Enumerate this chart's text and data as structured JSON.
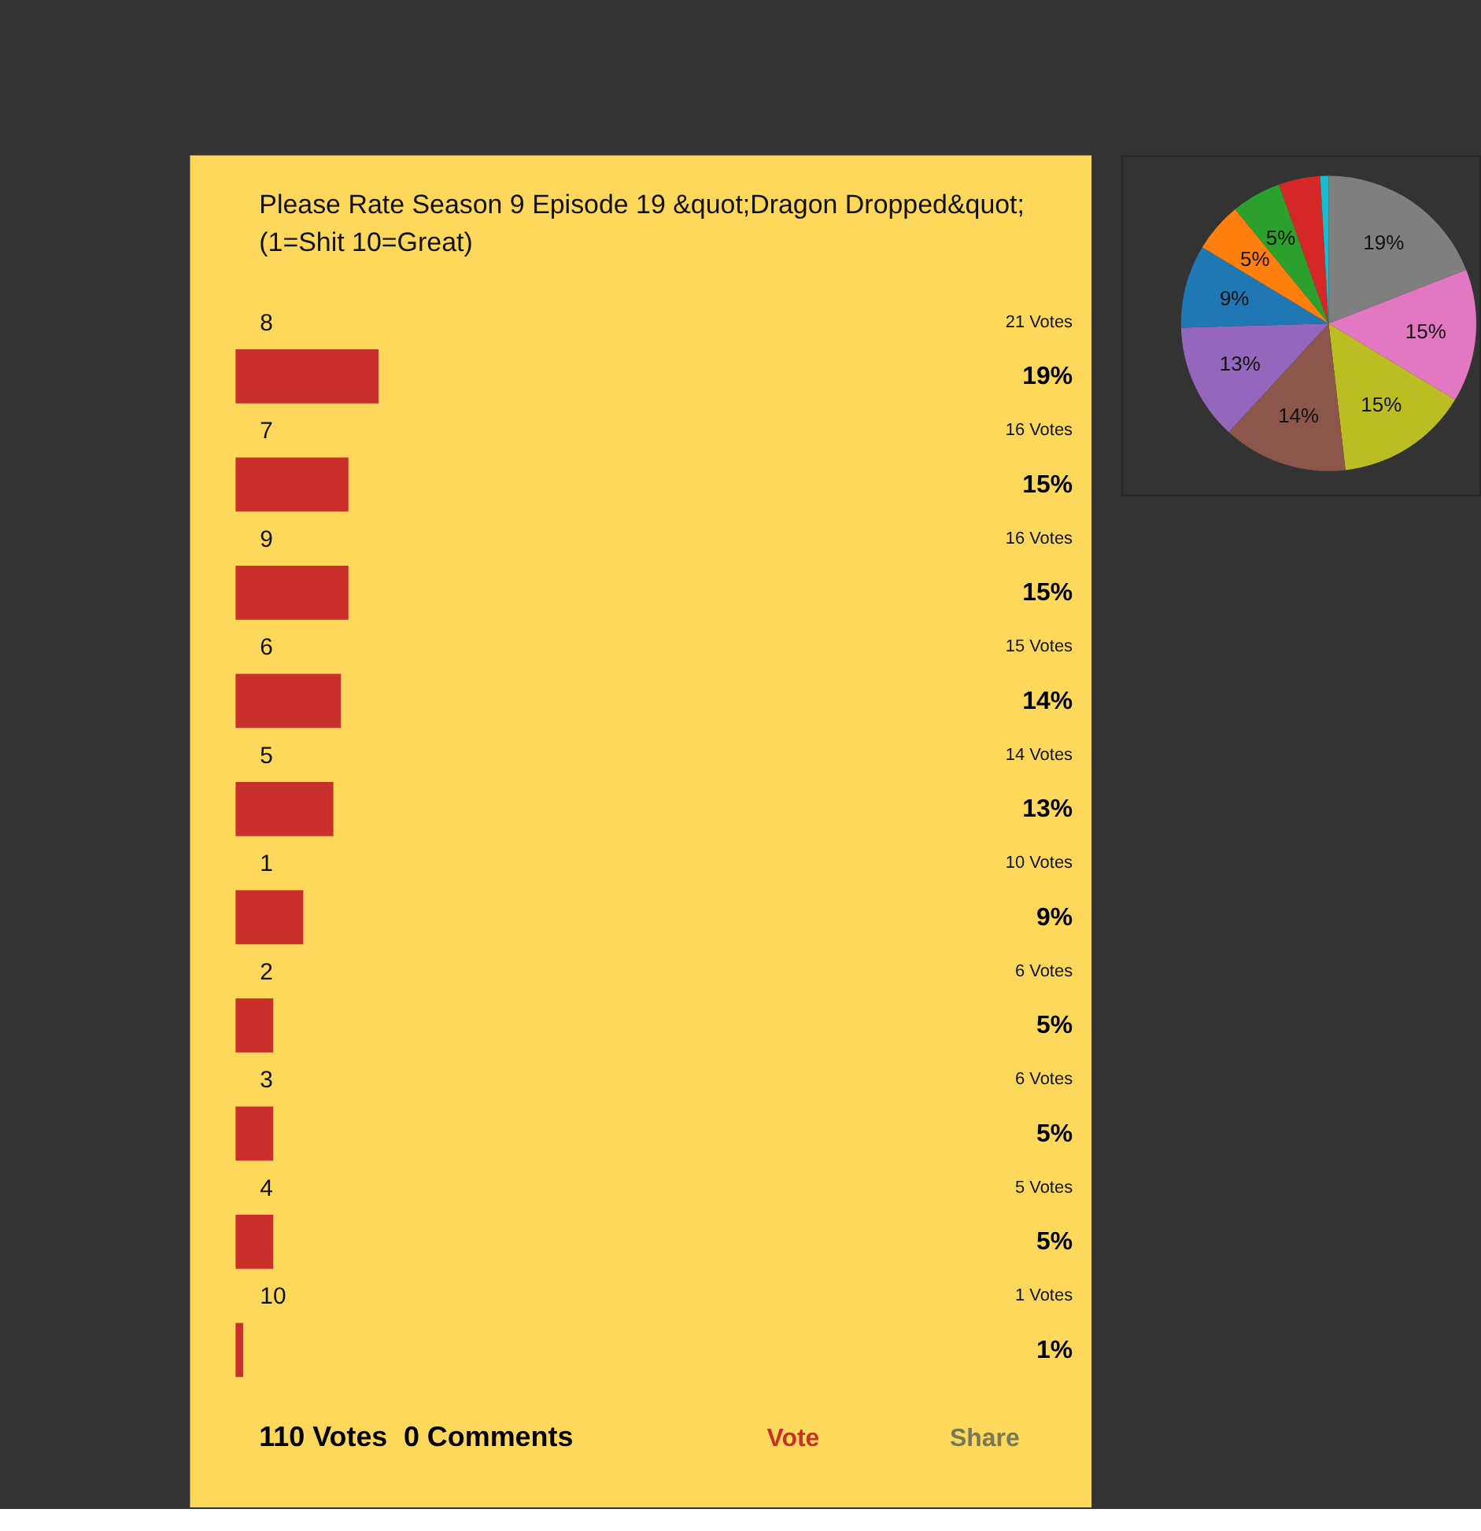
{
  "chart_data": [
    {
      "type": "bar",
      "orientation": "horizontal",
      "title": "Please Rate Season 9 Episode 19 &quot;Dragon Dropped&quot; (1=Shit 10=Great)",
      "categories": [
        "8",
        "7",
        "9",
        "6",
        "5",
        "1",
        "2",
        "3",
        "4",
        "10"
      ],
      "values": [
        19,
        15,
        15,
        14,
        13,
        9,
        5,
        5,
        5,
        1
      ],
      "value_labels": [
        "19%",
        "15%",
        "15%",
        "14%",
        "13%",
        "9%",
        "5%",
        "5%",
        "5%",
        "1%"
      ],
      "color": "#c9302c",
      "tick_labels": "y",
      "annotations": [
        "21 Votes",
        "16 Votes",
        "16 Votes",
        "15 Votes",
        "14 Votes",
        "10 Votes",
        "6 Votes",
        "6 Votes",
        "5 Votes",
        "1 Votes",
        "110 Votes",
        "0 Comments",
        "Vote",
        "Share"
      ]
    },
    {
      "type": "pie",
      "categories": [
        null,
        null,
        null,
        null,
        null,
        null,
        null,
        null,
        null,
        null
      ],
      "values": [
        19.09,
        14.55,
        14.55,
        13.64,
        12.73,
        9.09,
        5.45,
        5.45,
        4.55,
        0.91
      ],
      "colors": [
        "#7f7f7f",
        "#e377c2",
        "#bcbd22",
        "#8c564b",
        "#9467bd",
        "#1f77b4",
        "#ff7f0e",
        "#2ca02c",
        "#d62728",
        "#17becf"
      ],
      "value_labels": [
        "19%",
        "15%",
        "15%",
        "14%",
        "13%",
        "9%",
        "5%",
        "5%",
        null,
        null
      ]
    }
  ]
}
